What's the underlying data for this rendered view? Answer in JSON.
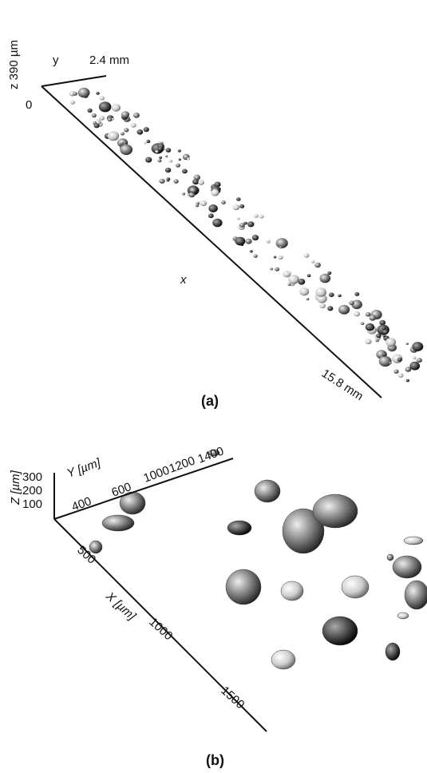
{
  "panel_a": {
    "z_label": "z 390 µm",
    "y_label": "y",
    "y_extent": "2.4 mm",
    "origin": "0",
    "x_label": "x",
    "x_extent": "15.8 mm",
    "caption": "(a)"
  },
  "panel_b": {
    "z_label": "Z [µm]",
    "z_ticks": [
      "300",
      "200",
      "100"
    ],
    "y_label": "Y [µm]",
    "y_ticks": [
      "400",
      "600",
      "1000",
      "1200",
      "1400"
    ],
    "x_label": "X [µm]",
    "x_ticks": [
      "500",
      "1000",
      "1500"
    ],
    "caption": "(b)"
  }
}
